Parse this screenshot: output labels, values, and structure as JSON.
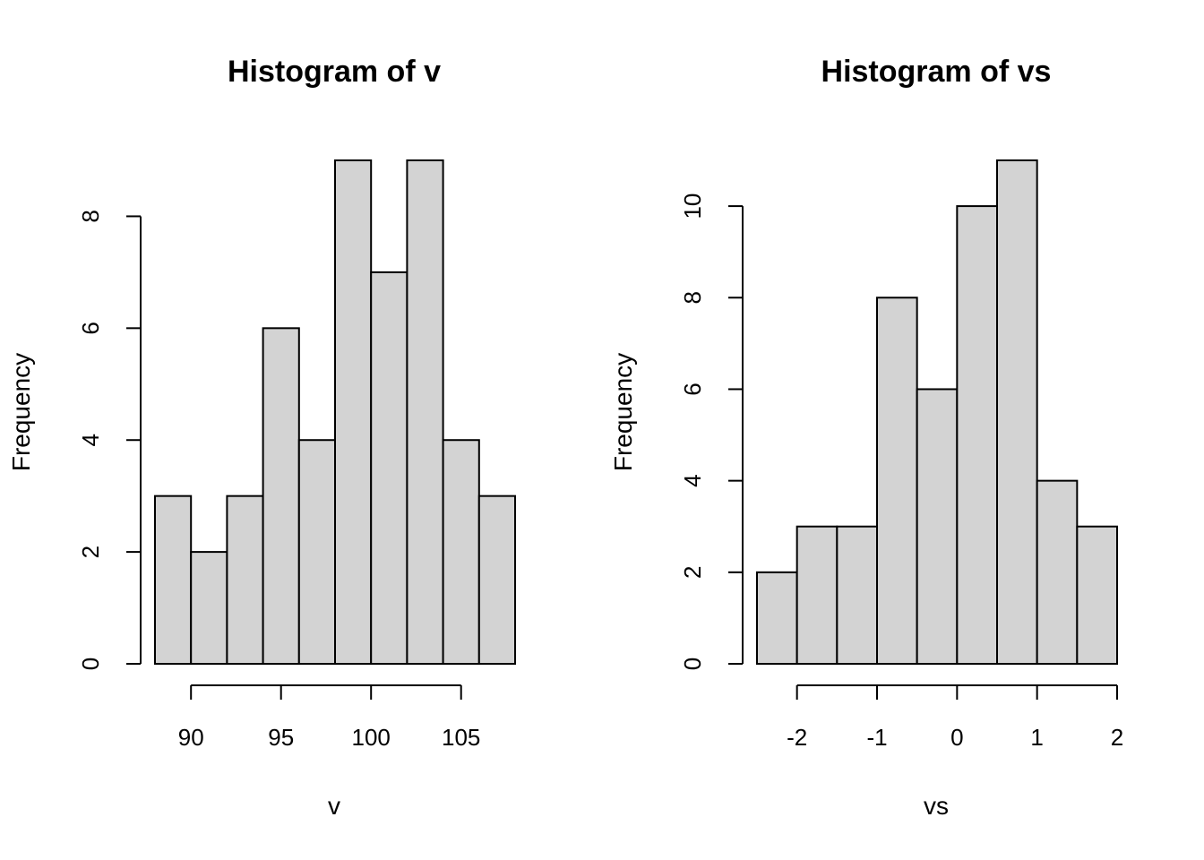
{
  "chart_data": [
    {
      "type": "bar",
      "title": "Histogram of v",
      "xlabel": "v",
      "ylabel": "Frequency",
      "bin_edges": [
        88,
        90,
        92,
        94,
        96,
        98,
        100,
        102,
        104,
        106,
        108
      ],
      "values": [
        3,
        2,
        3,
        6,
        4,
        9,
        7,
        9,
        4,
        3
      ],
      "x_ticks": [
        "90",
        "95",
        "100",
        "105"
      ],
      "y_ticks": [
        "0",
        "2",
        "4",
        "6",
        "8"
      ],
      "grid": false
    },
    {
      "type": "bar",
      "title": "Histogram of vs",
      "xlabel": "vs",
      "ylabel": "Frequency",
      "bin_edges": [
        -2.5,
        -2,
        -1.5,
        -1,
        -0.5,
        0,
        0.5,
        1,
        1.5,
        2
      ],
      "values": [
        2,
        3,
        3,
        8,
        6,
        10,
        11,
        4,
        3
      ],
      "x_ticks": [
        "-2",
        "-1",
        "0",
        "1",
        "2"
      ],
      "y_ticks": [
        "0",
        "2",
        "4",
        "6",
        "8",
        "10"
      ],
      "grid": false
    }
  ]
}
